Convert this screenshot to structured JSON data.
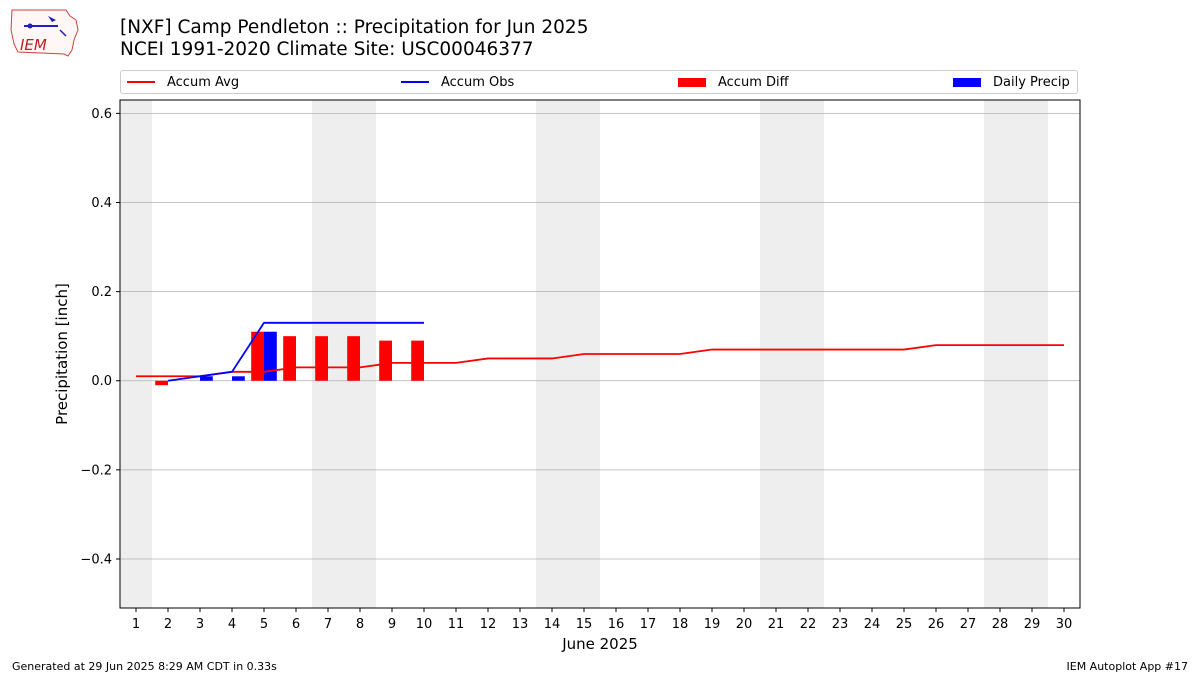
{
  "header": {
    "title_line1": "[NXF] Camp Pendleton :: Precipitation for Jun 2025",
    "title_line2": "NCEI 1991-2020 Climate Site: USC00046377",
    "logo_text": "IEM"
  },
  "legend": {
    "accum_avg": "Accum Avg",
    "accum_obs": "Accum Obs",
    "accum_diff": "Accum Diff",
    "daily_precip": "Daily Precip"
  },
  "footer": {
    "left": "Generated at 29 Jun 2025 8:29 AM CDT in 0.33s",
    "right": "IEM Autoplot App #17"
  },
  "colors": {
    "accum_avg": "#ff0000",
    "accum_obs": "#0000ff",
    "accum_diff": "#ff0000",
    "daily_precip": "#0000ff",
    "weekend_shade": "#eeeeee",
    "grid": "#b0b0b0"
  },
  "chart_data": {
    "type": "bar",
    "xlabel": "June 2025",
    "ylabel": "Precipitation [inch]",
    "xlim": [
      0.5,
      30.5
    ],
    "ylim": [
      -0.51,
      0.63
    ],
    "x_ticks": [
      1,
      2,
      3,
      4,
      5,
      6,
      7,
      8,
      9,
      10,
      11,
      12,
      13,
      14,
      15,
      16,
      17,
      18,
      19,
      20,
      21,
      22,
      23,
      24,
      25,
      26,
      27,
      28,
      29,
      30
    ],
    "y_ticks": [
      -0.4,
      -0.2,
      0.0,
      0.2,
      0.4,
      0.6
    ],
    "y_tick_labels": [
      "−0.4",
      "−0.2",
      "0.0",
      "0.2",
      "0.4",
      "0.6"
    ],
    "grid": "horizontal",
    "legend_position": "top",
    "weekend_days": [
      1,
      7,
      8,
      14,
      15,
      21,
      22,
      28,
      29
    ],
    "series": [
      {
        "name": "Accum Avg",
        "kind": "line",
        "x": [
          1,
          2,
          3,
          4,
          5,
          6,
          7,
          8,
          9,
          10,
          11,
          12,
          13,
          14,
          15,
          16,
          17,
          18,
          19,
          20,
          21,
          22,
          23,
          24,
          25,
          26,
          27,
          28,
          29,
          30
        ],
        "values": [
          0.01,
          0.01,
          0.01,
          0.02,
          0.02,
          0.03,
          0.03,
          0.03,
          0.04,
          0.04,
          0.04,
          0.05,
          0.05,
          0.05,
          0.06,
          0.06,
          0.06,
          0.06,
          0.07,
          0.07,
          0.07,
          0.07,
          0.07,
          0.07,
          0.07,
          0.08,
          0.08,
          0.08,
          0.08,
          0.08
        ]
      },
      {
        "name": "Accum Obs",
        "kind": "line",
        "x": [
          2,
          3,
          4,
          5,
          6,
          7,
          8,
          9,
          10
        ],
        "values": [
          0.0,
          0.01,
          0.02,
          0.13,
          0.13,
          0.13,
          0.13,
          0.13,
          0.13
        ]
      },
      {
        "name": "Accum Diff",
        "kind": "bar",
        "x": [
          2,
          3,
          4,
          5,
          6,
          7,
          8,
          9,
          10
        ],
        "values": [
          -0.01,
          0.0,
          0.0,
          0.11,
          0.1,
          0.1,
          0.1,
          0.09,
          0.09
        ]
      },
      {
        "name": "Daily Precip",
        "kind": "bar",
        "x": [
          3,
          4,
          5
        ],
        "values": [
          0.01,
          0.01,
          0.11
        ]
      }
    ]
  }
}
